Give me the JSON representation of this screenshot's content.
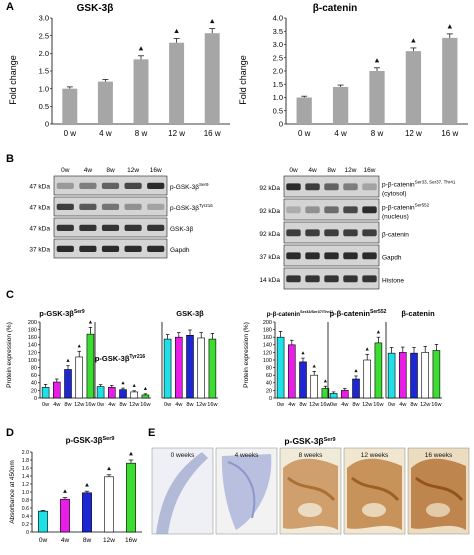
{
  "panel_letters": {
    "A": "A",
    "B": "B",
    "C": "C",
    "D": "D",
    "E": "E"
  },
  "colors": {
    "grey_bar": "#a6a6a6",
    "cyan": "#1ee0e6",
    "magenta": "#e61ee6",
    "blue": "#1e28d2",
    "white": "#ffffff",
    "green": "#3cdc32",
    "marker": "#111111"
  },
  "time_points": [
    "0w",
    "4w",
    "8w",
    "12w",
    "16w"
  ],
  "time_points_spaced": [
    "0 w",
    "4 w",
    "8 w",
    "12 w",
    "16 w"
  ],
  "panel_A": {
    "ylabel": "Fold change",
    "charts": [
      {
        "title": "GSK-3β",
        "ylim": [
          0,
          3
        ],
        "yticks": [
          "0",
          "0.5",
          "1.0",
          "1.5",
          "2.0",
          "2.5",
          "3.0"
        ]
      },
      {
        "title": "β-catenin",
        "ylim": [
          0,
          4
        ],
        "yticks": [
          "0",
          "0.5",
          "1.0",
          "1.5",
          "2.0",
          "2.5",
          "3.0",
          "3.5",
          "4.0"
        ]
      }
    ]
  },
  "panel_B": {
    "left": {
      "kda": [
        "47 kDa",
        "47 kDa",
        "47 kDa",
        "37 kDa"
      ],
      "labels": [
        "p-GSK-3β",
        "p-GSK-3β",
        "GSK-3β",
        "Gapdh"
      ],
      "sups": [
        "Ser9",
        "Tyr216",
        "",
        ""
      ]
    },
    "right": {
      "kda": [
        "92 kDa",
        "92 kDa",
        "92 kDa",
        "37 kDa",
        "14 kDa"
      ],
      "labels": [
        "p-β-catenin",
        "p-β-catenin",
        "β-catenin",
        "Gapdh",
        "Histone"
      ],
      "sups": [
        "Ser33, Ser37, Thr41",
        "Ser552",
        "",
        "",
        ""
      ],
      "sublabels": [
        "(cytosol)",
        "(nucleus)",
        "",
        "",
        ""
      ]
    }
  },
  "panel_C": {
    "ylabel": "Protein expression (%)",
    "yticks": [
      "0",
      "20",
      "40",
      "60",
      "80",
      "100",
      "120",
      "140",
      "160",
      "180",
      "200"
    ],
    "ylim": [
      0,
      200
    ],
    "charts": [
      {
        "title": "p-GSK-3β",
        "sup": "Ser9"
      },
      {
        "title": "p-GSK-3β",
        "sup": "Tyr216"
      },
      {
        "title": "GSK-3β",
        "sup": ""
      },
      {
        "title": "p-β-catenin",
        "sup": "Ser33/Ser37/Thr41"
      },
      {
        "title": "p-β-catenin",
        "sup": "Ser552"
      },
      {
        "title": "β-catenin",
        "sup": ""
      }
    ]
  },
  "panel_D": {
    "title": "p-GSK-3β",
    "sup": "Ser9",
    "ylabel": "Absorbance at 450nm",
    "yticks": [
      "0",
      "0.2",
      "0.4",
      "0.6",
      "0.8",
      "1.0",
      "1.2",
      "1.4",
      "1.6",
      "1.8",
      "2.0"
    ],
    "ylim": [
      0,
      2
    ]
  },
  "panel_E": {
    "title": "p-GSK-3β",
    "sup": "Ser9",
    "labels": [
      "0 weeks",
      "4 weeks",
      "8 weeks",
      "12 weeks",
      "16 weeks"
    ]
  },
  "chart_data": [
    {
      "id": "A1",
      "type": "bar",
      "title": "GSK-3β",
      "ylabel": "Fold change",
      "categories": [
        "0 w",
        "4 w",
        "8 w",
        "12 w",
        "16 w"
      ],
      "values": [
        1.0,
        1.2,
        1.83,
        2.3,
        2.57
      ],
      "errors": [
        0.05,
        0.06,
        0.1,
        0.12,
        0.13
      ],
      "marked": [
        false,
        false,
        true,
        true,
        true
      ],
      "ylim": [
        0,
        3
      ]
    },
    {
      "id": "A2",
      "type": "bar",
      "title": "β-catenin",
      "ylabel": "Fold change",
      "categories": [
        "0 w",
        "4 w",
        "8 w",
        "12 w",
        "16 w"
      ],
      "values": [
        1.0,
        1.4,
        2.0,
        2.75,
        3.25
      ],
      "errors": [
        0.05,
        0.07,
        0.12,
        0.12,
        0.15
      ],
      "marked": [
        false,
        false,
        true,
        true,
        true
      ],
      "ylim": [
        0,
        4
      ]
    },
    {
      "id": "C1",
      "type": "bar",
      "title": "p-GSK-3β Ser9",
      "ylabel": "Protein expression (%)",
      "categories": [
        "0w",
        "4w",
        "8w",
        "12w",
        "16w"
      ],
      "values": [
        28,
        42,
        75,
        108,
        168
      ],
      "errors": [
        8,
        8,
        10,
        15,
        18
      ],
      "marked": [
        false,
        false,
        true,
        true,
        true
      ],
      "ylim": [
        0,
        200
      ]
    },
    {
      "id": "C2",
      "type": "bar",
      "title": "p-GSK-3β Tyr216",
      "ylabel": "Protein expression (%)",
      "categories": [
        "0w",
        "4w",
        "8w",
        "12w",
        "16w"
      ],
      "values": [
        30,
        28,
        22,
        16,
        8
      ],
      "errors": [
        5,
        5,
        4,
        3,
        3
      ],
      "marked": [
        false,
        false,
        true,
        true,
        true
      ],
      "ylim": [
        0,
        200
      ]
    },
    {
      "id": "C3",
      "type": "bar",
      "title": "GSK-3β",
      "ylabel": "Protein expression (%)",
      "categories": [
        "0w",
        "4w",
        "8w",
        "12w",
        "16w"
      ],
      "values": [
        155,
        160,
        165,
        158,
        155
      ],
      "errors": [
        12,
        12,
        14,
        14,
        15
      ],
      "marked": [
        false,
        false,
        false,
        false,
        false
      ],
      "ylim": [
        0,
        200
      ]
    },
    {
      "id": "C4",
      "type": "bar",
      "title": "p-β-catenin Ser33/Ser37/Thr41",
      "ylabel": "Protein expression (%)",
      "categories": [
        "0w",
        "4w",
        "8w",
        "12w",
        "16w"
      ],
      "values": [
        160,
        140,
        95,
        60,
        25
      ],
      "errors": [
        15,
        12,
        10,
        10,
        6
      ],
      "marked": [
        false,
        false,
        true,
        true,
        true
      ],
      "ylim": [
        0,
        200
      ]
    },
    {
      "id": "C5",
      "type": "bar",
      "title": "p-β-catenin Ser552",
      "ylabel": "Protein expression (%)",
      "categories": [
        "0w",
        "4w",
        "8w",
        "12w",
        "16w"
      ],
      "values": [
        12,
        20,
        50,
        100,
        145
      ],
      "errors": [
        4,
        5,
        8,
        15,
        15
      ],
      "marked": [
        false,
        false,
        true,
        true,
        true
      ],
      "ylim": [
        0,
        200
      ]
    },
    {
      "id": "C6",
      "type": "bar",
      "title": "β-catenin",
      "ylabel": "Protein expression (%)",
      "categories": [
        "0w",
        "4w",
        "8w",
        "12w",
        "16w"
      ],
      "values": [
        118,
        120,
        118,
        120,
        125
      ],
      "errors": [
        15,
        14,
        15,
        16,
        16
      ],
      "marked": [
        false,
        false,
        false,
        false,
        false
      ],
      "ylim": [
        0,
        200
      ]
    },
    {
      "id": "D",
      "type": "bar",
      "title": "p-GSK-3β Ser9",
      "ylabel": "Absorbance at 450nm",
      "categories": [
        "0w",
        "4w",
        "8w",
        "12w",
        "16w"
      ],
      "values": [
        0.52,
        0.82,
        0.98,
        1.38,
        1.72
      ],
      "errors": [
        0.02,
        0.04,
        0.04,
        0.05,
        0.08
      ],
      "marked": [
        false,
        true,
        true,
        true,
        true
      ],
      "ylim": [
        0,
        2
      ]
    }
  ]
}
